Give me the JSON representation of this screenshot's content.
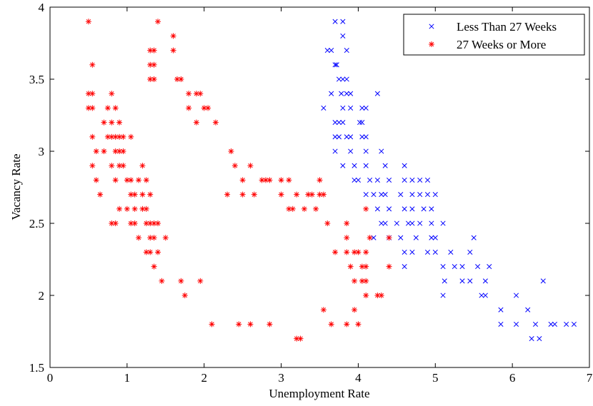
{
  "chart_data": {
    "type": "scatter",
    "xlabel": "Unemployment Rate",
    "ylabel": "Vacancy Rate",
    "xlim": [
      0,
      7
    ],
    "ylim": [
      1.5,
      4
    ],
    "xticks": [
      "0",
      "1",
      "2",
      "3",
      "4",
      "5",
      "6",
      "7"
    ],
    "yticks": [
      "1.5",
      "2",
      "2.5",
      "3",
      "3.5",
      "4"
    ],
    "grid": false,
    "legend_position": "top-right",
    "series": [
      {
        "name": "Less Than 27 Weeks",
        "marker": "x",
        "color": "#0000ff",
        "points": [
          [
            3.7,
            3.9
          ],
          [
            3.8,
            3.9
          ],
          [
            3.8,
            3.8
          ],
          [
            3.6,
            3.7
          ],
          [
            3.65,
            3.7
          ],
          [
            3.7,
            3.6
          ],
          [
            3.85,
            3.7
          ],
          [
            3.72,
            3.6
          ],
          [
            3.75,
            3.5
          ],
          [
            3.8,
            3.5
          ],
          [
            3.85,
            3.5
          ],
          [
            3.78,
            3.4
          ],
          [
            3.85,
            3.4
          ],
          [
            3.65,
            3.4
          ],
          [
            3.55,
            3.3
          ],
          [
            3.8,
            3.3
          ],
          [
            3.9,
            3.4
          ],
          [
            4.25,
            3.4
          ],
          [
            3.9,
            3.3
          ],
          [
            4.05,
            3.3
          ],
          [
            4.1,
            3.3
          ],
          [
            3.7,
            3.2
          ],
          [
            3.75,
            3.2
          ],
          [
            3.8,
            3.2
          ],
          [
            4.02,
            3.2
          ],
          [
            4.05,
            3.2
          ],
          [
            3.7,
            3.1
          ],
          [
            3.75,
            3.1
          ],
          [
            3.85,
            3.1
          ],
          [
            3.9,
            3.1
          ],
          [
            4.05,
            3.1
          ],
          [
            4.1,
            3.1
          ],
          [
            3.7,
            3.0
          ],
          [
            3.9,
            3.0
          ],
          [
            4.1,
            3.0
          ],
          [
            4.3,
            3.0
          ],
          [
            3.8,
            2.9
          ],
          [
            3.95,
            2.9
          ],
          [
            4.1,
            2.9
          ],
          [
            4.35,
            2.9
          ],
          [
            4.6,
            2.9
          ],
          [
            3.95,
            2.8
          ],
          [
            4.0,
            2.8
          ],
          [
            4.15,
            2.8
          ],
          [
            4.25,
            2.8
          ],
          [
            4.4,
            2.8
          ],
          [
            4.6,
            2.8
          ],
          [
            4.7,
            2.8
          ],
          [
            4.8,
            2.8
          ],
          [
            4.9,
            2.8
          ],
          [
            4.1,
            2.7
          ],
          [
            4.2,
            2.7
          ],
          [
            4.3,
            2.7
          ],
          [
            4.35,
            2.7
          ],
          [
            4.55,
            2.7
          ],
          [
            4.7,
            2.7
          ],
          [
            4.8,
            2.7
          ],
          [
            4.9,
            2.7
          ],
          [
            5.0,
            2.7
          ],
          [
            4.25,
            2.6
          ],
          [
            4.4,
            2.6
          ],
          [
            4.6,
            2.6
          ],
          [
            4.7,
            2.6
          ],
          [
            4.85,
            2.6
          ],
          [
            4.95,
            2.6
          ],
          [
            4.3,
            2.5
          ],
          [
            4.35,
            2.5
          ],
          [
            4.5,
            2.5
          ],
          [
            4.65,
            2.5
          ],
          [
            4.7,
            2.5
          ],
          [
            4.8,
            2.5
          ],
          [
            4.95,
            2.5
          ],
          [
            5.1,
            2.5
          ],
          [
            4.2,
            2.4
          ],
          [
            4.4,
            2.4
          ],
          [
            4.55,
            2.4
          ],
          [
            4.75,
            2.4
          ],
          [
            4.95,
            2.4
          ],
          [
            5.0,
            2.4
          ],
          [
            5.5,
            2.4
          ],
          [
            4.6,
            2.3
          ],
          [
            4.7,
            2.3
          ],
          [
            4.9,
            2.3
          ],
          [
            5.0,
            2.3
          ],
          [
            5.2,
            2.3
          ],
          [
            5.45,
            2.3
          ],
          [
            4.6,
            2.2
          ],
          [
            5.1,
            2.2
          ],
          [
            5.25,
            2.2
          ],
          [
            5.35,
            2.2
          ],
          [
            5.55,
            2.2
          ],
          [
            5.7,
            2.2
          ],
          [
            5.12,
            2.1
          ],
          [
            5.35,
            2.1
          ],
          [
            5.45,
            2.1
          ],
          [
            5.65,
            2.1
          ],
          [
            6.4,
            2.1
          ],
          [
            5.1,
            2.0
          ],
          [
            5.6,
            2.0
          ],
          [
            5.65,
            2.0
          ],
          [
            6.05,
            2.0
          ],
          [
            5.85,
            1.9
          ],
          [
            6.2,
            1.9
          ],
          [
            5.85,
            1.8
          ],
          [
            6.05,
            1.8
          ],
          [
            6.3,
            1.8
          ],
          [
            6.5,
            1.8
          ],
          [
            6.55,
            1.8
          ],
          [
            6.7,
            1.8
          ],
          [
            6.8,
            1.8
          ],
          [
            6.25,
            1.7
          ],
          [
            6.35,
            1.7
          ]
        ]
      },
      {
        "name": "27 Weeks or More",
        "marker": "*",
        "color": "#ff0000",
        "points": [
          [
            0.5,
            3.9
          ],
          [
            1.4,
            3.9
          ],
          [
            0.55,
            3.6
          ],
          [
            1.35,
            3.7
          ],
          [
            1.3,
            3.7
          ],
          [
            1.6,
            3.8
          ],
          [
            1.35,
            3.6
          ],
          [
            1.3,
            3.6
          ],
          [
            1.6,
            3.7
          ],
          [
            1.35,
            3.5
          ],
          [
            1.3,
            3.5
          ],
          [
            1.65,
            3.5
          ],
          [
            1.7,
            3.5
          ],
          [
            0.5,
            3.4
          ],
          [
            0.55,
            3.4
          ],
          [
            0.8,
            3.4
          ],
          [
            1.8,
            3.4
          ],
          [
            1.9,
            3.4
          ],
          [
            1.95,
            3.4
          ],
          [
            0.5,
            3.3
          ],
          [
            0.55,
            3.3
          ],
          [
            0.75,
            3.3
          ],
          [
            0.85,
            3.3
          ],
          [
            1.8,
            3.3
          ],
          [
            2.0,
            3.3
          ],
          [
            2.05,
            3.3
          ],
          [
            0.7,
            3.2
          ],
          [
            0.8,
            3.2
          ],
          [
            0.9,
            3.2
          ],
          [
            1.9,
            3.2
          ],
          [
            2.15,
            3.2
          ],
          [
            0.55,
            3.1
          ],
          [
            0.75,
            3.1
          ],
          [
            0.8,
            3.1
          ],
          [
            0.85,
            3.1
          ],
          [
            0.9,
            3.1
          ],
          [
            0.95,
            3.1
          ],
          [
            1.05,
            3.1
          ],
          [
            0.6,
            3.0
          ],
          [
            0.7,
            3.0
          ],
          [
            0.85,
            3.0
          ],
          [
            0.9,
            3.0
          ],
          [
            0.95,
            3.0
          ],
          [
            2.35,
            3.0
          ],
          [
            0.55,
            2.9
          ],
          [
            0.8,
            2.9
          ],
          [
            0.9,
            2.9
          ],
          [
            0.95,
            2.9
          ],
          [
            1.2,
            2.9
          ],
          [
            2.4,
            2.9
          ],
          [
            2.6,
            2.9
          ],
          [
            0.6,
            2.8
          ],
          [
            0.85,
            2.8
          ],
          [
            1.0,
            2.8
          ],
          [
            1.05,
            2.8
          ],
          [
            1.15,
            2.8
          ],
          [
            1.25,
            2.8
          ],
          [
            2.5,
            2.8
          ],
          [
            2.75,
            2.8
          ],
          [
            2.8,
            2.8
          ],
          [
            2.85,
            2.8
          ],
          [
            3.0,
            2.8
          ],
          [
            3.1,
            2.8
          ],
          [
            3.5,
            2.8
          ],
          [
            0.65,
            2.7
          ],
          [
            1.05,
            2.7
          ],
          [
            1.1,
            2.7
          ],
          [
            1.2,
            2.7
          ],
          [
            1.3,
            2.7
          ],
          [
            2.3,
            2.7
          ],
          [
            2.5,
            2.7
          ],
          [
            2.65,
            2.7
          ],
          [
            3.0,
            2.7
          ],
          [
            3.2,
            2.7
          ],
          [
            3.35,
            2.7
          ],
          [
            3.4,
            2.7
          ],
          [
            3.5,
            2.7
          ],
          [
            3.55,
            2.7
          ],
          [
            0.9,
            2.6
          ],
          [
            1.0,
            2.6
          ],
          [
            1.1,
            2.6
          ],
          [
            1.2,
            2.6
          ],
          [
            1.25,
            2.6
          ],
          [
            3.1,
            2.6
          ],
          [
            3.15,
            2.6
          ],
          [
            3.3,
            2.6
          ],
          [
            3.45,
            2.6
          ],
          [
            4.1,
            2.6
          ],
          [
            0.8,
            2.5
          ],
          [
            0.85,
            2.5
          ],
          [
            1.05,
            2.5
          ],
          [
            1.1,
            2.5
          ],
          [
            1.25,
            2.5
          ],
          [
            1.3,
            2.5
          ],
          [
            1.35,
            2.5
          ],
          [
            1.4,
            2.5
          ],
          [
            3.6,
            2.5
          ],
          [
            3.85,
            2.5
          ],
          [
            1.15,
            2.4
          ],
          [
            1.3,
            2.4
          ],
          [
            1.35,
            2.4
          ],
          [
            1.5,
            2.4
          ],
          [
            3.85,
            2.4
          ],
          [
            4.15,
            2.4
          ],
          [
            4.4,
            2.4
          ],
          [
            1.25,
            2.3
          ],
          [
            1.3,
            2.3
          ],
          [
            1.4,
            2.3
          ],
          [
            3.7,
            2.3
          ],
          [
            3.85,
            2.3
          ],
          [
            3.95,
            2.3
          ],
          [
            4.0,
            2.3
          ],
          [
            4.1,
            2.3
          ],
          [
            1.35,
            2.2
          ],
          [
            3.9,
            2.2
          ],
          [
            4.05,
            2.2
          ],
          [
            4.1,
            2.2
          ],
          [
            4.4,
            2.2
          ],
          [
            1.45,
            2.1
          ],
          [
            1.7,
            2.1
          ],
          [
            1.95,
            2.1
          ],
          [
            3.95,
            2.1
          ],
          [
            4.05,
            2.1
          ],
          [
            4.1,
            2.1
          ],
          [
            1.75,
            2.0
          ],
          [
            4.1,
            2.0
          ],
          [
            4.25,
            2.0
          ],
          [
            4.3,
            2.0
          ],
          [
            3.55,
            1.9
          ],
          [
            3.95,
            1.9
          ],
          [
            2.1,
            1.8
          ],
          [
            2.45,
            1.8
          ],
          [
            2.6,
            1.8
          ],
          [
            2.85,
            1.8
          ],
          [
            3.65,
            1.8
          ],
          [
            3.85,
            1.8
          ],
          [
            4.0,
            1.8
          ],
          [
            3.2,
            1.7
          ],
          [
            3.25,
            1.7
          ]
        ]
      }
    ]
  }
}
